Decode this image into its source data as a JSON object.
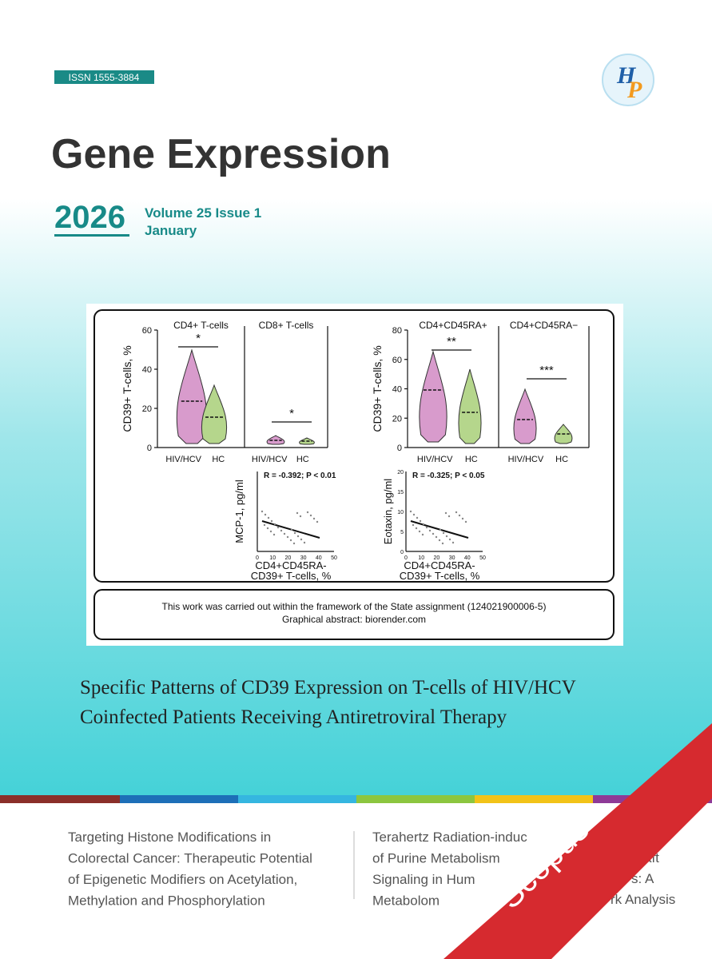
{
  "header": {
    "issn": "ISSN  1555-3884",
    "title": "Gene Expression",
    "year": "2026",
    "volume": "Volume 25 Issue 1",
    "month": "January"
  },
  "figure": {
    "violin_left": {
      "y_label": "CD39+ T-cells, %",
      "yticks": [
        "60",
        "40",
        "20",
        "0"
      ],
      "panels": [
        {
          "title": "CD4+ T-cells",
          "stars": "*"
        },
        {
          "title": "CD8+ T-cells",
          "stars": "*"
        }
      ],
      "categories": [
        "HIV/HCV",
        "HC"
      ]
    },
    "violin_right": {
      "y_label": "CD39+ T-cells, %",
      "yticks": [
        "80",
        "60",
        "40",
        "20",
        "0"
      ],
      "panels": [
        {
          "title": "CD4+CD45RA+",
          "stars": "**"
        },
        {
          "title": "CD4+CD45RA−",
          "stars": "***"
        }
      ],
      "categories": [
        "HIV/HCV",
        "HC"
      ]
    },
    "scatter_left": {
      "stat": "R = -0.392; P < 0.01",
      "y_label": "MCP-1, pg/ml",
      "xticks": [
        "0",
        "10",
        "20",
        "30",
        "40",
        "50"
      ],
      "x_label": [
        "CD4+CD45RA-",
        "CD39+ T-cells, %"
      ]
    },
    "scatter_right": {
      "stat": "R = -0.325; P < 0.05",
      "y_label": "Eotaxin, pg/ml",
      "yticks": [
        "20",
        "15",
        "10",
        "5",
        "0"
      ],
      "xticks": [
        "0",
        "10",
        "20",
        "30",
        "40",
        "50"
      ],
      "x_label": [
        "CD4+CD45RA-",
        "CD39+ T-cells, %"
      ]
    },
    "note": [
      "This work was carried out within the framework of the State assignment (124021900006-5)",
      "Graphical abstract: biorender.com"
    ]
  },
  "article": {
    "title": [
      "Specific Patterns of CD39 Expression on T-cells of HIV/HCV",
      "Coinfected Patients Receiving Antiretroviral Therapy"
    ]
  },
  "more": {
    "left": [
      "Targeting Histone Modifications in",
      "Colorectal Cancer: Therapeutic Potential",
      "of Epigenetic Modifiers on Acetylation,",
      "Methylation and Phosphorylation"
    ],
    "right": [
      "Terahertz Radiation-induc",
      "of Purine Metabolism",
      "Signaling in Hum",
      "Metabolom"
    ],
    "right_tail": [
      "aft",
      "s: A",
      "rk Analysis"
    ]
  },
  "badge": "Scopus"
}
